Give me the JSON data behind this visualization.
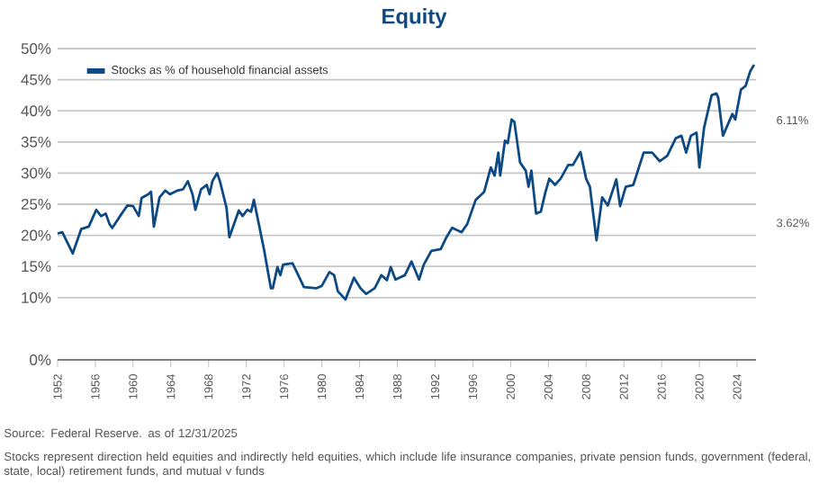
{
  "chart_data": {
    "type": "line",
    "title": "Equity",
    "x": [
      1952.0,
      1952.5,
      1953.6,
      1954.5,
      1955.3,
      1955.8,
      1956.1,
      1956.6,
      1957.1,
      1957.5,
      1957.8,
      1958.8,
      1959.4,
      1960.0,
      1960.6,
      1960.9,
      1961.6,
      1961.9,
      1962.2,
      1962.8,
      1963.4,
      1963.9,
      1964.7,
      1965.3,
      1965.8,
      1966.3,
      1966.6,
      1967.2,
      1967.8,
      1968.1,
      1968.4,
      1968.9,
      1969.2,
      1969.9,
      1970.2,
      1971.2,
      1971.6,
      1972.1,
      1972.5,
      1972.8,
      1973.9,
      1974.6,
      1974.8,
      1975.3,
      1975.6,
      1975.9,
      1976.9,
      1977.5,
      1978.1,
      1979.4,
      1980.0,
      1980.8,
      1981.3,
      1981.7,
      1982.5,
      1983.4,
      1984.1,
      1984.7,
      1985.6,
      1986.3,
      1986.9,
      1987.3,
      1987.8,
      1988.8,
      1989.5,
      1990.3,
      1990.8,
      1991.6,
      1992.6,
      1993.2,
      1993.8,
      1994.8,
      1995.4,
      1996.3,
      1997.2,
      1997.9,
      1998.3,
      1998.7,
      1998.9,
      1999.4,
      1999.7,
      2000.1,
      2000.4,
      2001.0,
      2001.6,
      2001.9,
      2002.2,
      2002.7,
      2003.2,
      2003.7,
      2004.1,
      2004.7,
      2005.3,
      2006.1,
      2006.6,
      2007.4,
      2008.0,
      2008.4,
      2009.1,
      2009.7,
      2010.3,
      2011.2,
      2011.6,
      2012.2,
      2013.0,
      2014.1,
      2015.0,
      2015.8,
      2016.6,
      2017.5,
      2018.1,
      2018.6,
      2019.1,
      2019.7,
      2020.0,
      2020.5,
      2021.3,
      2021.8,
      2022.0,
      2022.5,
      2023.5,
      2023.8,
      2024.4,
      2024.9,
      2025.4,
      2025.8
    ],
    "series": [
      {
        "name": "Stocks as % of household financial assets",
        "color": "#0d4a84",
        "values": [
          20.3,
          20.5,
          17.1,
          21,
          21.4,
          23.1,
          24.1,
          23.1,
          23.5,
          21.8,
          21.2,
          23.5,
          24.8,
          24.7,
          23.1,
          26,
          26.6,
          27,
          21.4,
          26.1,
          27.2,
          26.6,
          27.2,
          27.4,
          28.7,
          26.6,
          24.1,
          27.4,
          28.1,
          26.6,
          28.7,
          30,
          28.7,
          24.4,
          19.7,
          24,
          23.1,
          24.1,
          23.8,
          25.7,
          17.5,
          11.5,
          11.5,
          14.9,
          13.6,
          15.3,
          15.5,
          13.6,
          11.7,
          11.5,
          11.9,
          14.1,
          13.6,
          11,
          9.7,
          13.2,
          11.5,
          10.6,
          11.5,
          13.6,
          12.8,
          14.9,
          12.9,
          13.6,
          15.8,
          12.9,
          15.3,
          17.5,
          17.8,
          19.7,
          21.2,
          20.5,
          21.8,
          25.7,
          27,
          30.9,
          29.6,
          33.3,
          29.6,
          35.2,
          34.8,
          38.6,
          38.2,
          31.7,
          30.4,
          27.8,
          30.4,
          23.5,
          23.8,
          27,
          29.1,
          28.1,
          29.1,
          31.3,
          31.3,
          33.4,
          29.1,
          27.8,
          19.2,
          26.1,
          24.8,
          29,
          24.7,
          27.8,
          28.1,
          33.3,
          33.3,
          31.9,
          32.8,
          35.6,
          36,
          33.3,
          36,
          36.5,
          30.9,
          37.3,
          42.5,
          42.8,
          42.1,
          36,
          39.5,
          38.6,
          43.4,
          44,
          46.4,
          47.4
        ]
      }
    ],
    "xlim": [
      1952,
      2026
    ],
    "xticks": [
      1952,
      1956,
      1960,
      1964,
      1968,
      1972,
      1976,
      1980,
      1984,
      1988,
      1992,
      1996,
      2000,
      2004,
      2008,
      2012,
      2016,
      2020,
      2024
    ],
    "ylim": [
      0,
      50
    ],
    "yticks": [
      {
        "value": 0,
        "label": "0%"
      },
      {
        "value": 10,
        "label": "10%"
      },
      {
        "value": 15,
        "label": "15%"
      },
      {
        "value": 20,
        "label": "20%"
      },
      {
        "value": 25,
        "label": "25%"
      },
      {
        "value": 30,
        "label": "30%"
      },
      {
        "value": 35,
        "label": "35%"
      },
      {
        "value": 40,
        "label": "40%"
      },
      {
        "value": 45,
        "label": "45%"
      },
      {
        "value": 50,
        "label": "50%"
      }
    ],
    "grid": "y",
    "legend": "top left",
    "annotations": [
      "6.11%",
      "3.62%",
      "Source: Federal Reserve. as of 12/31/2025",
      "Stocks represent direction held equities and indirectly held equities, which include life insurance companies, private pension funds, government (federal, state, local) retirement funds, and mutual v funds"
    ]
  }
}
